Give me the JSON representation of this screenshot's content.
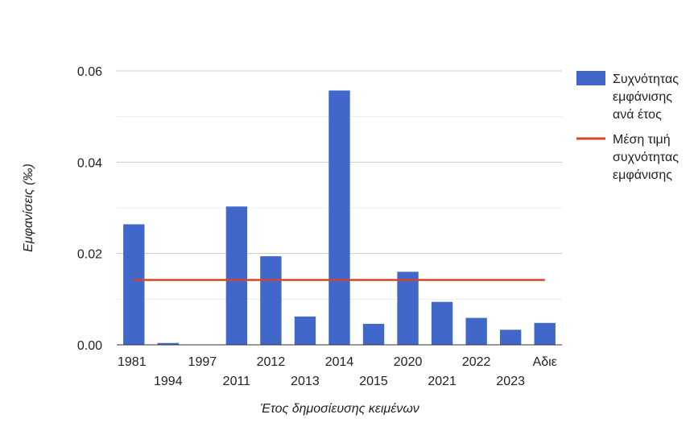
{
  "chart_data": {
    "type": "bar",
    "xlabel": "Έτος δημοσίευσης κειμένων",
    "ylabel": "Εμφανίσεις (‰)",
    "ylim": [
      0,
      0.06
    ],
    "yticks": [
      "0.00",
      "0.02",
      "0.04",
      "0.06"
    ],
    "categories": [
      "1981",
      "1994",
      "1997",
      "2011",
      "2012",
      "2013",
      "2014",
      "2015",
      "2020",
      "2021",
      "2022",
      "2023",
      "Αδιε"
    ],
    "series": [
      {
        "name": "Συχνότητας εμφάνισης ανά έτος",
        "kind": "bar",
        "color": "#4267cb",
        "values": [
          0.0264,
          0.0004,
          0.0,
          0.0303,
          0.0194,
          0.0062,
          0.0557,
          0.0046,
          0.016,
          0.0094,
          0.0059,
          0.0033,
          0.0048
        ]
      },
      {
        "name": "Μέση τιμή συχνότητας εμφάνισης",
        "kind": "line",
        "color": "#d0472a",
        "value": 0.0142
      }
    ],
    "legend_position": "right",
    "grid": true
  },
  "legend": {
    "bar_lines": [
      "Συχνότητας",
      "εμφάνισης",
      "ανά έτος"
    ],
    "line_lines": [
      "Μέση τιμή",
      "συχνότητας",
      "εμφάνισης"
    ]
  }
}
